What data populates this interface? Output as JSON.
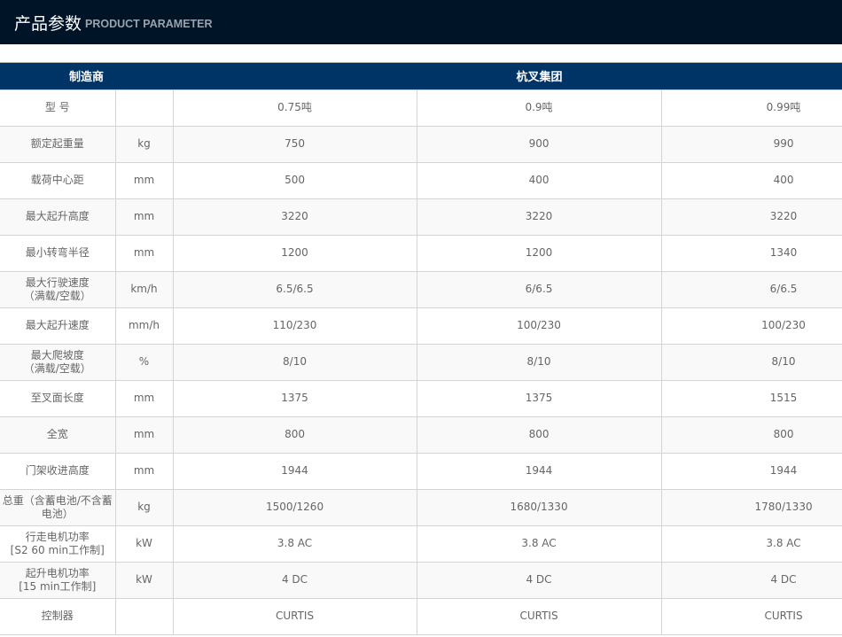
{
  "header": {
    "title_cn": "产品参数",
    "title_en": "PRODUCT PARAMETER"
  },
  "table": {
    "manufacturer_label": "制造商",
    "manufacturer": "杭叉集团",
    "rows": [
      {
        "label": "型 号",
        "unit": "",
        "values": [
          "0.75吨",
          "0.9吨",
          "0.99吨"
        ]
      },
      {
        "label": "额定起重量",
        "unit": "kg",
        "values": [
          "750",
          "900",
          "990"
        ]
      },
      {
        "label": "载荷中心距",
        "unit": "mm",
        "values": [
          "500",
          "400",
          "400"
        ]
      },
      {
        "label": "最大起升高度",
        "unit": "mm",
        "values": [
          "3220",
          "3220",
          "3220"
        ]
      },
      {
        "label": "最小转弯半径",
        "unit": "mm",
        "values": [
          "1200",
          "1200",
          "1340"
        ]
      },
      {
        "label": "最大行驶速度\n（满载/空载）",
        "unit": "km/h",
        "values": [
          "6.5/6.5",
          "6/6.5",
          "6/6.5"
        ]
      },
      {
        "label": "最大起升速度",
        "unit": "mm/h",
        "values": [
          "110/230",
          "100/230",
          "100/230"
        ]
      },
      {
        "label": "最大爬坡度\n（满载/空载）",
        "unit": "%",
        "values": [
          "8/10",
          "8/10",
          "8/10"
        ]
      },
      {
        "label": "至叉面长度",
        "unit": "mm",
        "values": [
          "1375",
          "1375",
          "1515"
        ]
      },
      {
        "label": "全宽",
        "unit": "mm",
        "values": [
          "800",
          "800",
          "800"
        ]
      },
      {
        "label": "门架收进高度",
        "unit": "mm",
        "values": [
          "1944",
          "1944",
          "1944"
        ]
      },
      {
        "label": "总重（含蓄电池/不含蓄电池）",
        "unit": "kg",
        "values": [
          "1500/1260",
          "1680/1330",
          "1780/1330"
        ]
      },
      {
        "label": "行走电机功率\n[S2 60 min工作制]",
        "unit": "kW",
        "values": [
          "3.8 AC",
          "3.8 AC",
          "3.8 AC"
        ]
      },
      {
        "label": "起升电机功率\n[15 min工作制]",
        "unit": "kW",
        "values": [
          "4 DC",
          "4 DC",
          "4 DC"
        ]
      },
      {
        "label": "控制器",
        "unit": "",
        "values": [
          "CURTIS",
          "CURTIS",
          "CURTIS"
        ]
      }
    ]
  }
}
